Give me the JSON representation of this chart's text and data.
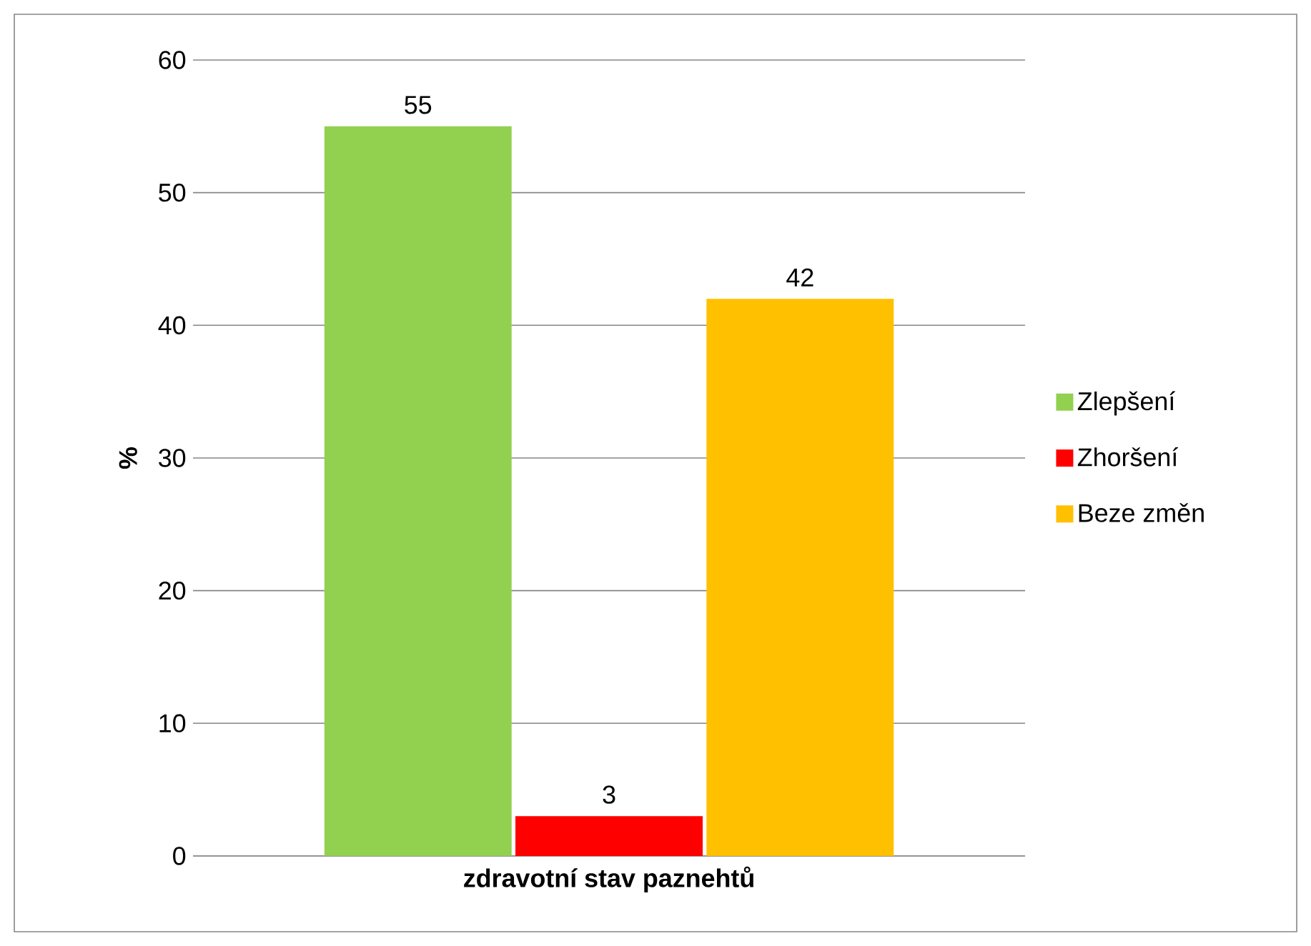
{
  "chart_data": {
    "type": "bar",
    "categories": [
      "zdravotní stav paznehtů"
    ],
    "ylabel": "%",
    "series": [
      {
        "name": "Zlepšení",
        "color": "#92d050",
        "values": [
          55
        ]
      },
      {
        "name": "Zhoršení",
        "color": "#ff0000",
        "values": [
          3
        ]
      },
      {
        "name": "Beze změn",
        "color": "#ffc000",
        "values": [
          42
        ]
      }
    ],
    "ylim": [
      0,
      60
    ],
    "yticks": [
      0,
      10,
      20,
      30,
      40,
      50,
      60
    ],
    "grid": "y",
    "legend": "right",
    "data_labels": true
  }
}
